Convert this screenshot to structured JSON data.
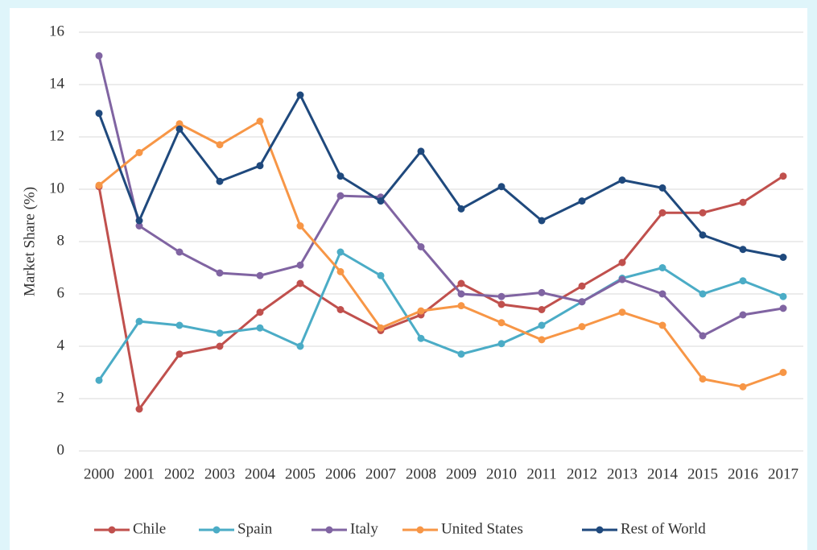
{
  "chart_data": {
    "type": "line",
    "ylabel": "Market Share (%)",
    "categories": [
      "2000",
      "2001",
      "2002",
      "2003",
      "2004",
      "2005",
      "2006",
      "2007",
      "2008",
      "2009",
      "2010",
      "2011",
      "2012",
      "2013",
      "2014",
      "2015",
      "2016",
      "2017"
    ],
    "ylim": [
      0,
      16
    ],
    "yticks": [
      0,
      2,
      4,
      6,
      8,
      10,
      12,
      14,
      16
    ],
    "grid": true,
    "legend": "bottom",
    "series": [
      {
        "name": "Chile",
        "color": "#c0504d",
        "values": [
          10.1,
          1.6,
          3.7,
          4.0,
          5.3,
          6.4,
          5.4,
          4.6,
          5.2,
          6.4,
          5.6,
          5.4,
          6.3,
          7.2,
          9.1,
          9.1,
          9.5,
          10.5
        ]
      },
      {
        "name": "Spain",
        "color": "#4bacc6",
        "values": [
          2.7,
          4.95,
          4.8,
          4.5,
          4.7,
          4.0,
          7.6,
          6.7,
          4.3,
          3.7,
          4.1,
          4.8,
          5.7,
          6.6,
          7.0,
          6.0,
          6.5,
          5.9
        ]
      },
      {
        "name": "Italy",
        "color": "#8064a2",
        "values": [
          15.1,
          8.6,
          7.6,
          6.8,
          6.7,
          7.1,
          9.75,
          9.7,
          7.8,
          6.0,
          5.9,
          6.05,
          5.7,
          6.55,
          6.0,
          4.4,
          5.2,
          5.45
        ]
      },
      {
        "name": "United States",
        "color": "#f79646",
        "values": [
          10.15,
          11.4,
          12.5,
          11.7,
          12.6,
          8.6,
          6.85,
          4.7,
          5.35,
          5.55,
          4.9,
          4.25,
          4.75,
          5.3,
          4.8,
          2.75,
          2.45,
          3.0
        ]
      },
      {
        "name": "Rest of World",
        "color": "#1f497d",
        "values": [
          12.9,
          8.8,
          12.3,
          10.3,
          10.9,
          13.6,
          10.5,
          9.55,
          11.45,
          9.25,
          10.1,
          8.8,
          9.55,
          10.35,
          10.05,
          8.25,
          7.7,
          7.4
        ]
      }
    ]
  }
}
